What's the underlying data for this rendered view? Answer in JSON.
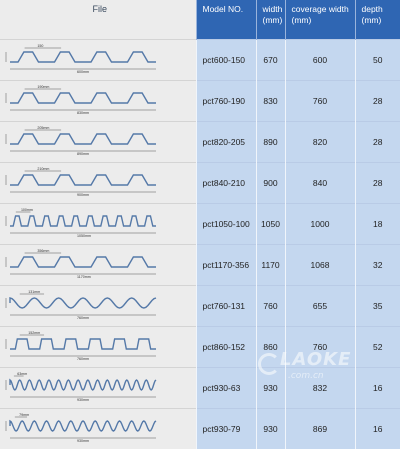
{
  "headers": {
    "file": "File",
    "model": "Model NO.",
    "width": "width\n(mm)",
    "coverage": "coverage width\n(mm)",
    "depth": "depth\n(mm)"
  },
  "rows": [
    {
      "model": "pct600-150",
      "width": "670",
      "coverage": "600",
      "depth": "50",
      "profile": {
        "shape": "trap",
        "n": 4,
        "dims": [
          "150",
          "600mm"
        ]
      }
    },
    {
      "model": "pct760-190",
      "width": "830",
      "coverage": "760",
      "depth": "28",
      "profile": {
        "shape": "trap",
        "n": 4,
        "dims": [
          "190mm",
          "830mm"
        ]
      }
    },
    {
      "model": "pct820-205",
      "width": "890",
      "coverage": "820",
      "depth": "28",
      "profile": {
        "shape": "trap",
        "n": 4,
        "dims": [
          "205mm",
          "890mm"
        ]
      }
    },
    {
      "model": "pct840-210",
      "width": "900",
      "coverage": "840",
      "depth": "28",
      "profile": {
        "shape": "trap",
        "n": 4,
        "dims": [
          "210mm",
          "900mm"
        ]
      }
    },
    {
      "model": "pct1050-100",
      "width": "1050",
      "coverage": "1000",
      "depth": "18",
      "profile": {
        "shape": "trap",
        "n": 10,
        "dims": [
          "100mm",
          "1050mm"
        ]
      }
    },
    {
      "model": "pct1170-356",
      "width": "1170",
      "coverage": "1068",
      "depth": "32",
      "profile": {
        "shape": "trap",
        "n": 4,
        "dims": [
          "356mm",
          "1170mm"
        ]
      }
    },
    {
      "model": "pct760-131",
      "width": "760",
      "coverage": "655",
      "depth": "35",
      "profile": {
        "shape": "wave",
        "n": 6,
        "dims": [
          "131mm",
          "760mm"
        ]
      }
    },
    {
      "model": "pct860-152",
      "width": "860",
      "coverage": "760",
      "depth": "52",
      "profile": {
        "shape": "sq",
        "n": 6,
        "dims": [
          "152mm",
          "760mm"
        ]
      }
    },
    {
      "model": "pct930-63",
      "width": "930",
      "coverage": "832",
      "depth": "16",
      "profile": {
        "shape": "wave",
        "n": 15,
        "dims": [
          "63mm",
          "930mm"
        ]
      }
    },
    {
      "model": "pct930-79",
      "width": "930",
      "coverage": "869",
      "depth": "16",
      "profile": {
        "shape": "wave",
        "n": 12,
        "dims": [
          "79mm",
          "930mm"
        ]
      }
    }
  ],
  "watermark": {
    "brand": "LAOKE",
    "domain": ".com.cn"
  },
  "colors": {
    "header": "#2f66b3",
    "cell": "#c4d7ef",
    "profile": "#5579a8"
  }
}
